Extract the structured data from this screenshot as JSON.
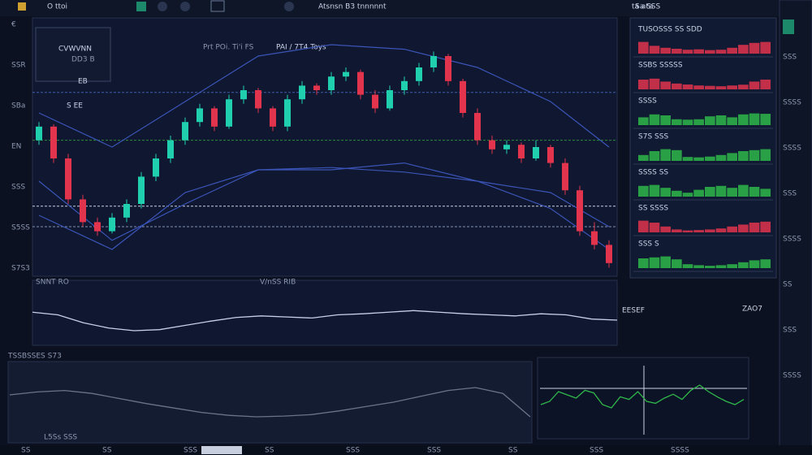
{
  "toolbar": {
    "items": [
      "O ttoi",
      "Atsnsn B3 tnnnnnt"
    ],
    "right": "ta ata"
  },
  "ticker": {
    "symbol": "CVWVNN",
    "sub": "DD3 B",
    "price": "EB",
    "change": "S EE"
  },
  "main_chart": {
    "type": "candlestick",
    "title": "PAI / 7T4 Toys",
    "legend": "Prt POi. Ti'i FS",
    "up_color": "#1fcfae",
    "down_color": "#e2344d",
    "ylim": [
      0,
      100
    ],
    "candles": [
      [
        58,
        66,
        56,
        64
      ],
      [
        64,
        65,
        48,
        50
      ],
      [
        50,
        52,
        30,
        32
      ],
      [
        32,
        34,
        20,
        22
      ],
      [
        22,
        24,
        16,
        18
      ],
      [
        18,
        26,
        17,
        24
      ],
      [
        24,
        32,
        22,
        30
      ],
      [
        30,
        44,
        28,
        42
      ],
      [
        42,
        52,
        40,
        50
      ],
      [
        50,
        60,
        48,
        58
      ],
      [
        58,
        68,
        56,
        66
      ],
      [
        66,
        74,
        64,
        72
      ],
      [
        72,
        73,
        62,
        64
      ],
      [
        64,
        78,
        63,
        76
      ],
      [
        76,
        82,
        74,
        80
      ],
      [
        80,
        81,
        70,
        72
      ],
      [
        72,
        73,
        62,
        64
      ],
      [
        64,
        78,
        62,
        76
      ],
      [
        76,
        84,
        74,
        82
      ],
      [
        82,
        83,
        78,
        80
      ],
      [
        80,
        88,
        78,
        86
      ],
      [
        86,
        90,
        84,
        88
      ],
      [
        88,
        89,
        76,
        78
      ],
      [
        78,
        80,
        70,
        72
      ],
      [
        72,
        82,
        71,
        80
      ],
      [
        80,
        86,
        78,
        84
      ],
      [
        84,
        92,
        82,
        90
      ],
      [
        90,
        97,
        88,
        95
      ],
      [
        95,
        96,
        82,
        84
      ],
      [
        84,
        85,
        68,
        70
      ],
      [
        70,
        72,
        56,
        58
      ],
      [
        58,
        60,
        52,
        54
      ],
      [
        54,
        58,
        52,
        56
      ],
      [
        56,
        57,
        48,
        50
      ],
      [
        50,
        58,
        49,
        55
      ],
      [
        55,
        56,
        46,
        48
      ],
      [
        48,
        50,
        34,
        36
      ],
      [
        36,
        38,
        16,
        18
      ],
      [
        18,
        22,
        10,
        12
      ],
      [
        12,
        14,
        2,
        4
      ]
    ],
    "bands": {
      "color": "#3b54b8",
      "x": [
        0,
        5,
        10,
        15,
        20,
        25,
        30,
        35,
        39
      ],
      "upper": [
        70,
        55,
        75,
        95,
        100,
        98,
        90,
        75,
        55
      ],
      "middle": [
        25,
        10,
        35,
        45,
        46,
        44,
        40,
        35,
        20
      ],
      "lower": [
        40,
        14,
        30,
        45,
        45,
        48,
        40,
        28,
        10
      ]
    },
    "levels": [
      {
        "value": 79,
        "color": "#3f5fa8"
      },
      {
        "value": 58,
        "color": "#2f8a3a"
      },
      {
        "value": 29,
        "color": "#c8d0e0"
      },
      {
        "value": 20,
        "color": "#8090b0"
      }
    ],
    "axis_labels": [
      "€",
      "SSR",
      "SBa",
      "EN",
      "SSS",
      "S5SS",
      "S7S3"
    ]
  },
  "oscillator": {
    "type": "line",
    "label": "SNNT RO",
    "title": "V/nSS RIB",
    "readout": "EESEF",
    "ylim": [
      0,
      100
    ],
    "color": "#c8d0e8",
    "values": [
      55,
      50,
      35,
      25,
      20,
      22,
      30,
      38,
      45,
      48,
      46,
      44,
      50,
      52,
      55,
      58,
      55,
      52,
      50,
      48,
      52,
      50,
      42,
      40
    ]
  },
  "lower_panel": {
    "type": "line",
    "title": "TSSBSSES S73",
    "footer": "L5Ss SSS",
    "ylim": [
      0,
      100
    ],
    "color": "#6a7488",
    "values": [
      60,
      64,
      66,
      62,
      55,
      48,
      42,
      36,
      32,
      30,
      31,
      33,
      38,
      44,
      50,
      58,
      66,
      70,
      62,
      30
    ]
  },
  "mini_chart": {
    "type": "line",
    "label": "ZAO7",
    "ylim": [
      0,
      100
    ],
    "color": "#2fb84a",
    "values": [
      40,
      45,
      60,
      55,
      50,
      62,
      58,
      40,
      35,
      52,
      48,
      60,
      45,
      42,
      50,
      56,
      48,
      62,
      70,
      60,
      52,
      45,
      40,
      48
    ]
  },
  "watchlist": {
    "title": "Sa SSS",
    "rows": [
      {
        "label": "TUSOSSS SS SDD",
        "color": "#e2344d",
        "values": [
          60,
          40,
          30,
          25,
          20,
          22,
          18,
          20,
          30,
          45,
          55,
          60
        ]
      },
      {
        "label": "SSBS SSSSS",
        "color": "#e2344d",
        "values": [
          50,
          55,
          40,
          30,
          25,
          20,
          18,
          16,
          20,
          24,
          40,
          50
        ]
      },
      {
        "label": "SSSS",
        "color": "#2fb84a",
        "values": [
          40,
          55,
          50,
          30,
          28,
          30,
          45,
          50,
          40,
          55,
          60,
          58
        ]
      },
      {
        "label": "S7S SSS",
        "color": "#2fb84a",
        "values": [
          30,
          50,
          60,
          55,
          20,
          18,
          22,
          30,
          40,
          50,
          55,
          60
        ]
      },
      {
        "label": "SSSS SS",
        "color": "#2fb84a",
        "values": [
          55,
          60,
          45,
          30,
          20,
          35,
          50,
          55,
          45,
          60,
          50,
          40
        ]
      },
      {
        "label": "SS SSSS",
        "color": "#e2344d",
        "values": [
          60,
          50,
          30,
          15,
          10,
          12,
          15,
          20,
          30,
          40,
          50,
          55
        ]
      },
      {
        "label": "SSS S",
        "color": "#2fb84a",
        "values": [
          50,
          55,
          60,
          45,
          20,
          15,
          12,
          15,
          20,
          30,
          40,
          45
        ]
      }
    ]
  },
  "sidebar": {
    "items": [
      "SSS",
      "SSSS",
      "SSSS",
      "SSS",
      "SSSS",
      "SS",
      "SSS",
      "SSSS"
    ]
  },
  "status": {
    "items": [
      "SS",
      "SS",
      "SSS",
      "SS",
      "SSS",
      "SSS",
      "SS",
      "SSS",
      "SSSS"
    ]
  }
}
